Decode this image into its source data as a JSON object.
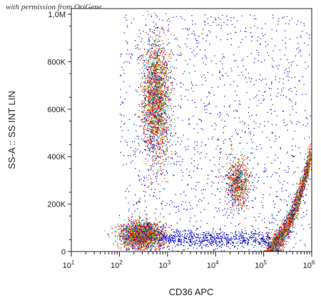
{
  "watermark": "with permission from OriGene",
  "chart_data": {
    "type": "scatter",
    "subtype": "flow-cytometry-density-dot-plot",
    "xlabel": "CD36 APC",
    "ylabel": "SS-A :: SS INT LIN",
    "x_scale": "log",
    "xlim": [
      10,
      1000000
    ],
    "ylim": [
      0,
      1024000
    ],
    "x_ticks": [
      {
        "value": 10,
        "base": "10",
        "exp": "1"
      },
      {
        "value": 100,
        "base": "10",
        "exp": "2"
      },
      {
        "value": 1000,
        "base": "10",
        "exp": "3"
      },
      {
        "value": 10000,
        "base": "10",
        "exp": "4"
      },
      {
        "value": 100000,
        "base": "10",
        "exp": "5"
      },
      {
        "value": 1000000,
        "base": "10",
        "exp": "6"
      }
    ],
    "y_ticks": [
      {
        "value": 0,
        "label": "0"
      },
      {
        "value": 200000,
        "label": "200K"
      },
      {
        "value": 400000,
        "label": "400K"
      },
      {
        "value": 600000,
        "label": "600K"
      },
      {
        "value": 800000,
        "label": "800K"
      },
      {
        "value": 1000000,
        "label": "1,0M"
      }
    ],
    "populations": [
      {
        "x_log_center": 2.45,
        "x_log_sd": 0.22,
        "y_center": 70000,
        "y_sd": 28000,
        "density": "high"
      },
      {
        "x_log_center": 2.75,
        "x_log_sd": 0.14,
        "y_center": 650000,
        "y_sd": 130000,
        "density": "high"
      },
      {
        "x_log_center": 4.45,
        "x_log_sd": 0.12,
        "y_center": 290000,
        "y_sd": 55000,
        "density": "medium"
      },
      {
        "x_log_center": 5.45,
        "x_log_sd": 0.2,
        "y_center": 150000,
        "y_sd": 70000,
        "density": "high"
      }
    ],
    "colormap": [
      "#0000c8",
      "#00a0ff",
      "#00d060",
      "#e0e000",
      "#ff6000",
      "#d00000"
    ]
  }
}
